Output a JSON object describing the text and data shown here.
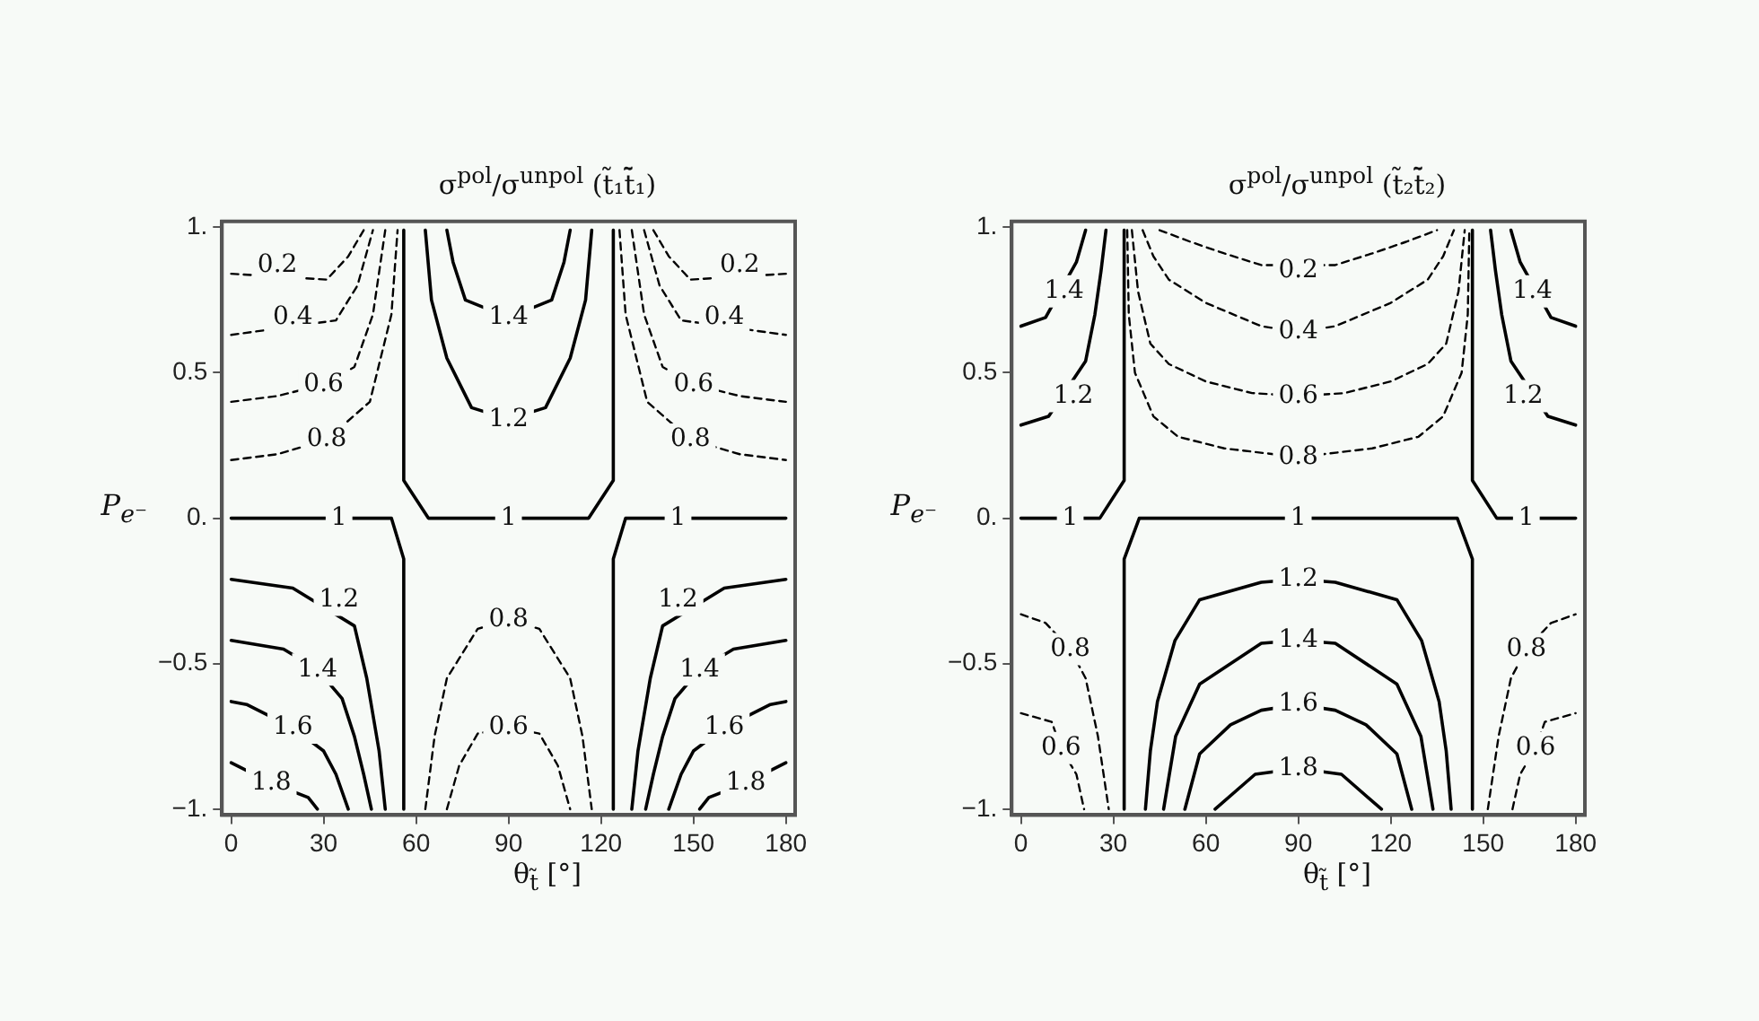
{
  "chart_data": [
    {
      "type": "line",
      "title": "σ$^{pol}$/σ$^{unpol}$ (t̃₁t̃̄₁)",
      "xlabel": "θ$_{t̃}$ [°]",
      "ylabel": "P$_{e⁻}$",
      "marker": "none",
      "xlim": [
        -3,
        183
      ],
      "ylim": [
        -1.02,
        1.02
      ],
      "xticks": [
        0,
        30,
        60,
        90,
        120,
        150,
        180
      ],
      "yticks": [
        {
          "value": -1,
          "label": "−1."
        },
        {
          "value": -0.5,
          "label": "−0.5"
        },
        {
          "value": 0,
          "label": "0."
        },
        {
          "value": 0.5,
          "label": "0.5"
        },
        {
          "value": 1,
          "label": "1."
        }
      ],
      "series": [
        {
          "color": "#000000",
          "line_style": "dashed",
          "x": [
            0,
            31,
            38,
            43
          ],
          "values": [
            0.84,
            0.82,
            0.9,
            0.99
          ]
        },
        {
          "color": "#000000",
          "line_style": "dashed",
          "x": [
            137,
            142,
            149,
            180
          ],
          "values": [
            0.99,
            0.9,
            0.82,
            0.84
          ]
        },
        {
          "color": "#000000",
          "line_style": "dashed",
          "x": [
            0,
            34,
            41,
            46
          ],
          "values": [
            0.63,
            0.68,
            0.8,
            0.99
          ]
        },
        {
          "color": "#000000",
          "line_style": "dashed",
          "x": [
            134,
            139,
            146,
            180
          ],
          "values": [
            0.99,
            0.8,
            0.68,
            0.63
          ]
        },
        {
          "color": "#000000",
          "line_style": "dashed",
          "x": [
            0,
            15,
            30,
            40,
            46,
            50
          ],
          "values": [
            0.4,
            0.42,
            0.46,
            0.52,
            0.7,
            0.99
          ]
        },
        {
          "color": "#000000",
          "line_style": "dashed",
          "x": [
            130,
            134,
            140,
            150,
            165,
            180
          ],
          "values": [
            0.99,
            0.7,
            0.52,
            0.46,
            0.42,
            0.4
          ]
        },
        {
          "color": "#000000",
          "line_style": "dashed",
          "x": [
            0,
            15,
            31,
            45,
            52,
            54
          ],
          "values": [
            0.2,
            0.22,
            0.27,
            0.4,
            0.7,
            0.99
          ]
        },
        {
          "color": "#000000",
          "line_style": "dashed",
          "x": [
            126,
            128,
            135,
            149,
            165,
            180
          ],
          "values": [
            0.99,
            0.7,
            0.4,
            0.27,
            0.22,
            0.2
          ]
        },
        {
          "color": "#000000",
          "line_style": "solid",
          "x": [
            0,
            52,
            56,
            56
          ],
          "values": [
            0,
            0,
            -0.14,
            -1
          ]
        },
        {
          "color": "#000000",
          "line_style": "solid",
          "x": [
            56,
            56,
            64,
            116,
            124,
            124
          ],
          "values": [
            0.99,
            0.13,
            0,
            0,
            0.13,
            0.99
          ]
        },
        {
          "color": "#000000",
          "line_style": "solid",
          "x": [
            124,
            124,
            128,
            180
          ],
          "values": [
            -1,
            -0.14,
            0,
            0
          ]
        },
        {
          "color": "#000000",
          "line_style": "solid",
          "x": [
            70,
            72,
            76,
            90,
            104,
            108,
            110
          ],
          "values": [
            0.99,
            0.88,
            0.75,
            0.69,
            0.75,
            0.88,
            0.99
          ]
        },
        {
          "color": "#000000",
          "line_style": "solid",
          "x": [
            63,
            65,
            70,
            78,
            90,
            102,
            110,
            115,
            117
          ],
          "values": [
            0.99,
            0.75,
            0.55,
            0.38,
            0.34,
            0.38,
            0.55,
            0.75,
            0.99
          ]
        },
        {
          "color": "#000000",
          "line_style": "dashed",
          "x": [
            63,
            66,
            70,
            80,
            90,
            100,
            110,
            114,
            117
          ],
          "values": [
            -1,
            -0.75,
            -0.55,
            -0.38,
            -0.35,
            -0.38,
            -0.55,
            -0.75,
            -1
          ]
        },
        {
          "color": "#000000",
          "line_style": "dashed",
          "x": [
            70,
            74,
            80,
            90,
            100,
            106,
            110
          ],
          "values": [
            -1,
            -0.85,
            -0.74,
            -0.72,
            -0.74,
            -0.85,
            -1
          ]
        },
        {
          "color": "#000000",
          "line_style": "solid",
          "x": [
            0,
            20,
            40,
            44,
            48,
            50
          ],
          "values": [
            -0.21,
            -0.24,
            -0.37,
            -0.55,
            -0.8,
            -1
          ]
        },
        {
          "color": "#000000",
          "line_style": "solid",
          "x": [
            130,
            132,
            136,
            140,
            160,
            180
          ],
          "values": [
            -1,
            -0.8,
            -0.55,
            -0.37,
            -0.24,
            -0.21
          ]
        },
        {
          "color": "#000000",
          "line_style": "solid",
          "x": [
            0,
            17,
            28,
            36,
            40,
            43,
            45.5
          ],
          "values": [
            -0.42,
            -0.45,
            -0.52,
            -0.62,
            -0.75,
            -0.88,
            -1
          ]
        },
        {
          "color": "#000000",
          "line_style": "solid",
          "x": [
            134.5,
            137,
            140,
            144,
            152,
            163,
            180
          ],
          "values": [
            -1,
            -0.88,
            -0.75,
            -0.62,
            -0.52,
            -0.45,
            -0.42
          ]
        },
        {
          "color": "#000000",
          "line_style": "solid",
          "x": [
            0,
            5,
            20,
            30,
            34,
            38
          ],
          "values": [
            -0.63,
            -0.64,
            -0.72,
            -0.8,
            -0.88,
            -1
          ]
        },
        {
          "color": "#000000",
          "line_style": "solid",
          "x": [
            142,
            146,
            150,
            160,
            175,
            180
          ],
          "values": [
            -1,
            -0.88,
            -0.8,
            -0.72,
            -0.64,
            -0.63
          ]
        },
        {
          "color": "#000000",
          "line_style": "solid",
          "x": [
            0,
            13,
            25,
            28
          ],
          "values": [
            -0.84,
            -0.91,
            -0.96,
            -1
          ]
        },
        {
          "color": "#000000",
          "line_style": "solid",
          "x": [
            152,
            155,
            167,
            180
          ],
          "values": [
            -1,
            -0.96,
            -0.91,
            -0.84
          ]
        }
      ],
      "annotations": [
        {
          "text": "0.2",
          "x": 15,
          "y": 0.87
        },
        {
          "text": "0.2",
          "x": 165,
          "y": 0.87
        },
        {
          "text": "0.4",
          "x": 20,
          "y": 0.69
        },
        {
          "text": "0.4",
          "x": 160,
          "y": 0.69
        },
        {
          "text": "0.6",
          "x": 30,
          "y": 0.46
        },
        {
          "text": "0.6",
          "x": 150,
          "y": 0.46
        },
        {
          "text": "0.8",
          "x": 31,
          "y": 0.27
        },
        {
          "text": "0.8",
          "x": 149,
          "y": 0.27
        },
        {
          "text": "1",
          "x": 35,
          "y": 0
        },
        {
          "text": "1",
          "x": 90,
          "y": 0
        },
        {
          "text": "1",
          "x": 145,
          "y": 0
        },
        {
          "text": "1.4",
          "x": 90,
          "y": 0.69
        },
        {
          "text": "1.2",
          "x": 90,
          "y": 0.34
        },
        {
          "text": "0.8",
          "x": 90,
          "y": -0.35
        },
        {
          "text": "0.6",
          "x": 90,
          "y": -0.72
        },
        {
          "text": "1.2",
          "x": 35,
          "y": -0.28
        },
        {
          "text": "1.2",
          "x": 145,
          "y": -0.28
        },
        {
          "text": "1.4",
          "x": 28,
          "y": -0.52
        },
        {
          "text": "1.4",
          "x": 152,
          "y": -0.52
        },
        {
          "text": "1.6",
          "x": 20,
          "y": -0.72
        },
        {
          "text": "1.6",
          "x": 160,
          "y": -0.72
        },
        {
          "text": "1.8",
          "x": 13,
          "y": -0.91
        },
        {
          "text": "1.8",
          "x": 167,
          "y": -0.91
        }
      ]
    },
    {
      "type": "line",
      "title": "σ$^{pol}$/σ$^{unpol}$ (t̃₂t̃̄₂)",
      "xlabel": "θ$_{t̃}$ [°]",
      "ylabel": "P$_{e⁻}$",
      "marker": "none",
      "xlim": [
        -3,
        183
      ],
      "ylim": [
        -1.02,
        1.02
      ],
      "xticks": [
        0,
        30,
        60,
        90,
        120,
        150,
        180
      ],
      "yticks": [
        {
          "value": -1,
          "label": "−1."
        },
        {
          "value": -0.5,
          "label": "−0.5"
        },
        {
          "value": 0,
          "label": "0."
        },
        {
          "value": 0.5,
          "label": "0.5"
        },
        {
          "value": 1,
          "label": "1."
        }
      ],
      "series": [
        {
          "color": "#000000",
          "line_style": "solid",
          "x": [
            33.5,
            33.5,
            25.6,
            0
          ],
          "values": [
            0.99,
            0.13,
            0,
            0
          ]
        },
        {
          "color": "#000000",
          "line_style": "solid",
          "x": [
            33.5,
            33.5,
            38.4,
            141.6,
            146.5,
            146.5
          ],
          "values": [
            -1,
            -0.14,
            0,
            0,
            -0.14,
            -1
          ]
        },
        {
          "color": "#000000",
          "line_style": "solid",
          "x": [
            180,
            154.4,
            146.5,
            146.5
          ],
          "values": [
            0,
            0,
            0.13,
            0.99
          ]
        },
        {
          "color": "#000000",
          "line_style": "dashed",
          "x": [
            45,
            55,
            66,
            78,
            102,
            114,
            125,
            135
          ],
          "values": [
            0.99,
            0.95,
            0.91,
            0.87,
            0.87,
            0.91,
            0.95,
            0.99
          ]
        },
        {
          "color": "#000000",
          "line_style": "dashed",
          "x": [
            39.5,
            43,
            48,
            60,
            78,
            90,
            102,
            120,
            132,
            137,
            140.5
          ],
          "values": [
            0.99,
            0.9,
            0.82,
            0.74,
            0.66,
            0.64,
            0.66,
            0.74,
            0.82,
            0.9,
            0.99
          ]
        },
        {
          "color": "#000000",
          "line_style": "dashed",
          "x": [
            36,
            38,
            42,
            48,
            60,
            75,
            90,
            105,
            120,
            132,
            138,
            142,
            144
          ],
          "values": [
            0.99,
            0.78,
            0.6,
            0.53,
            0.47,
            0.43,
            0.42,
            0.43,
            0.47,
            0.53,
            0.6,
            0.78,
            0.99
          ]
        },
        {
          "color": "#000000",
          "line_style": "dashed",
          "x": [
            34.5,
            35,
            37,
            43,
            51,
            66,
            90,
            114,
            129,
            137,
            143,
            145,
            145.5
          ],
          "values": [
            0.99,
            0.7,
            0.5,
            0.35,
            0.28,
            0.24,
            0.21,
            0.24,
            0.28,
            0.35,
            0.5,
            0.7,
            0.99
          ]
        },
        {
          "color": "#000000",
          "line_style": "solid",
          "x": [
            0,
            8,
            18,
            21
          ],
          "values": [
            0.66,
            0.69,
            0.88,
            0.99
          ]
        },
        {
          "color": "#000000",
          "line_style": "solid",
          "x": [
            159,
            162,
            172,
            180
          ],
          "values": [
            0.99,
            0.88,
            0.69,
            0.66
          ]
        },
        {
          "color": "#000000",
          "line_style": "solid",
          "x": [
            0,
            9,
            21,
            24,
            26,
            27.6
          ],
          "values": [
            0.32,
            0.35,
            0.54,
            0.7,
            0.85,
            0.99
          ]
        },
        {
          "color": "#000000",
          "line_style": "solid",
          "x": [
            152.4,
            154,
            156,
            159,
            171,
            180
          ],
          "values": [
            0.99,
            0.85,
            0.7,
            0.54,
            0.35,
            0.32
          ]
        },
        {
          "color": "#000000",
          "line_style": "solid",
          "x": [
            40.4,
            42,
            44.3,
            50,
            58,
            78,
            90,
            102,
            122,
            130,
            135.7,
            138,
            139.6
          ],
          "values": [
            -1,
            -0.8,
            -0.63,
            -0.42,
            -0.28,
            -0.22,
            -0.21,
            -0.22,
            -0.28,
            -0.42,
            -0.63,
            -0.8,
            -1
          ]
        },
        {
          "color": "#000000",
          "line_style": "solid",
          "x": [
            46.3,
            50.2,
            58,
            78,
            90,
            102,
            122,
            129.8,
            133.7
          ],
          "values": [
            -1,
            -0.75,
            -0.57,
            -0.43,
            -0.42,
            -0.43,
            -0.57,
            -0.75,
            -1
          ]
        },
        {
          "color": "#000000",
          "line_style": "solid",
          "x": [
            53.2,
            58,
            68,
            78,
            90,
            102,
            112,
            122,
            126.8
          ],
          "values": [
            -1,
            -0.81,
            -0.71,
            -0.66,
            -0.64,
            -0.66,
            -0.71,
            -0.81,
            -1
          ]
        },
        {
          "color": "#000000",
          "line_style": "solid",
          "x": [
            63,
            76,
            90,
            104,
            117
          ],
          "values": [
            -1,
            -0.88,
            -0.86,
            -0.88,
            -1
          ]
        },
        {
          "color": "#000000",
          "line_style": "dashed",
          "x": [
            0,
            8,
            16,
            21,
            25,
            28.5
          ],
          "values": [
            -0.33,
            -0.36,
            -0.45,
            -0.55,
            -0.75,
            -1
          ]
        },
        {
          "color": "#000000",
          "line_style": "dashed",
          "x": [
            151.5,
            155,
            159,
            164,
            172,
            180
          ],
          "values": [
            -1,
            -0.75,
            -0.55,
            -0.45,
            -0.36,
            -0.33
          ]
        },
        {
          "color": "#000000",
          "line_style": "dashed",
          "x": [
            0,
            10,
            13,
            18,
            20.5
          ],
          "values": [
            -0.67,
            -0.7,
            -0.79,
            -0.88,
            -1
          ]
        },
        {
          "color": "#000000",
          "line_style": "dashed",
          "x": [
            159.5,
            162,
            167,
            170,
            180
          ],
          "values": [
            -1,
            -0.88,
            -0.79,
            -0.7,
            -0.67
          ]
        }
      ],
      "annotations": [
        {
          "text": "1.4",
          "x": 14,
          "y": 0.78
        },
        {
          "text": "1.4",
          "x": 166,
          "y": 0.78
        },
        {
          "text": "1.2",
          "x": 17,
          "y": 0.42
        },
        {
          "text": "1.2",
          "x": 163,
          "y": 0.42
        },
        {
          "text": "0.2",
          "x": 90,
          "y": 0.85
        },
        {
          "text": "0.4",
          "x": 90,
          "y": 0.64
        },
        {
          "text": "0.6",
          "x": 90,
          "y": 0.42
        },
        {
          "text": "0.8",
          "x": 90,
          "y": 0.21
        },
        {
          "text": "1",
          "x": 16,
          "y": 0
        },
        {
          "text": "1",
          "x": 90,
          "y": 0
        },
        {
          "text": "1",
          "x": 164,
          "y": 0
        },
        {
          "text": "1.2",
          "x": 90,
          "y": -0.21
        },
        {
          "text": "1.4",
          "x": 90,
          "y": -0.42
        },
        {
          "text": "1.6",
          "x": 90,
          "y": -0.64
        },
        {
          "text": "1.8",
          "x": 90,
          "y": -0.86
        },
        {
          "text": "0.8",
          "x": 16,
          "y": -0.45
        },
        {
          "text": "0.8",
          "x": 164,
          "y": -0.45
        },
        {
          "text": "0.6",
          "x": 13,
          "y": -0.79
        },
        {
          "text": "0.6",
          "x": 167,
          "y": -0.79
        }
      ]
    }
  ]
}
